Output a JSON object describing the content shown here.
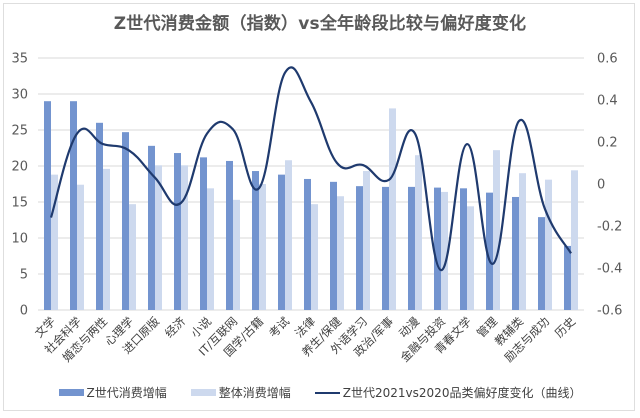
{
  "title": "Z世代消费金额（指数）vs全年龄段比较与偏好度变化",
  "colors": {
    "gen_z_bar": "#7394cf",
    "overall_bar": "#cdd9ee",
    "line": "#1f3a6e",
    "grid": "#d9d9d9",
    "axis_text": "#595959"
  },
  "legend": {
    "gen_z": "Z世代消费增幅",
    "overall": "整体消费增幅",
    "line": "Z世代2021vs2020品类偏好度变化（曲线）"
  },
  "chart_data": {
    "type": "bar+line",
    "title": "Z世代消费金额（指数）vs全年龄段比较与偏好度变化",
    "xlabel": "",
    "ylabel": "",
    "y2label": "",
    "categories": [
      "文学",
      "社会科学",
      "婚恋与两性",
      "心理学",
      "进口原版",
      "经济",
      "小说",
      "IT/互联网",
      "国学/古籍",
      "考试",
      "法律",
      "养生/保健",
      "外语学习",
      "政治/军事",
      "动漫",
      "金融与投资",
      "青春文学",
      "管理",
      "教辅类",
      "励志与成功",
      "历史"
    ],
    "series": [
      {
        "name": "Z世代消费增幅",
        "type": "bar",
        "axis": "left",
        "values": [
          29.0,
          29.0,
          26.0,
          24.7,
          22.8,
          21.8,
          21.2,
          20.7,
          19.3,
          18.8,
          18.2,
          17.8,
          17.2,
          17.1,
          17.1,
          17.0,
          16.9,
          16.3,
          15.7,
          12.9,
          8.9
        ]
      },
      {
        "name": "整体消费增幅",
        "type": "bar",
        "axis": "left",
        "values": [
          18.8,
          17.4,
          19.6,
          14.7,
          20.1,
          20.1,
          16.9,
          15.3,
          17.5,
          20.8,
          14.7,
          15.8,
          19.3,
          28.0,
          21.5,
          16.4,
          14.4,
          22.2,
          19.0,
          18.1,
          19.4
        ]
      },
      {
        "name": "Z世代2021vs2020品类偏好度变化（曲线）",
        "type": "line",
        "smooth": true,
        "axis": "right",
        "values": [
          -0.16,
          0.24,
          0.19,
          0.16,
          0.03,
          -0.09,
          0.24,
          0.26,
          -0.02,
          0.53,
          0.39,
          0.1,
          0.09,
          0.02,
          0.24,
          -0.41,
          0.19,
          -0.38,
          0.3,
          -0.12,
          -0.33
        ]
      }
    ],
    "ylim": [
      0,
      35
    ],
    "yticks": [
      "0",
      "5",
      "10",
      "15",
      "20",
      "25",
      "30",
      "35"
    ],
    "y2lim": [
      -0.6,
      0.6
    ],
    "y2ticks": [
      "-0.6",
      "-0.4",
      "-0.2",
      "0",
      "0.2",
      "0.4",
      "0.6"
    ],
    "grid": true,
    "legend_position": "bottom"
  }
}
